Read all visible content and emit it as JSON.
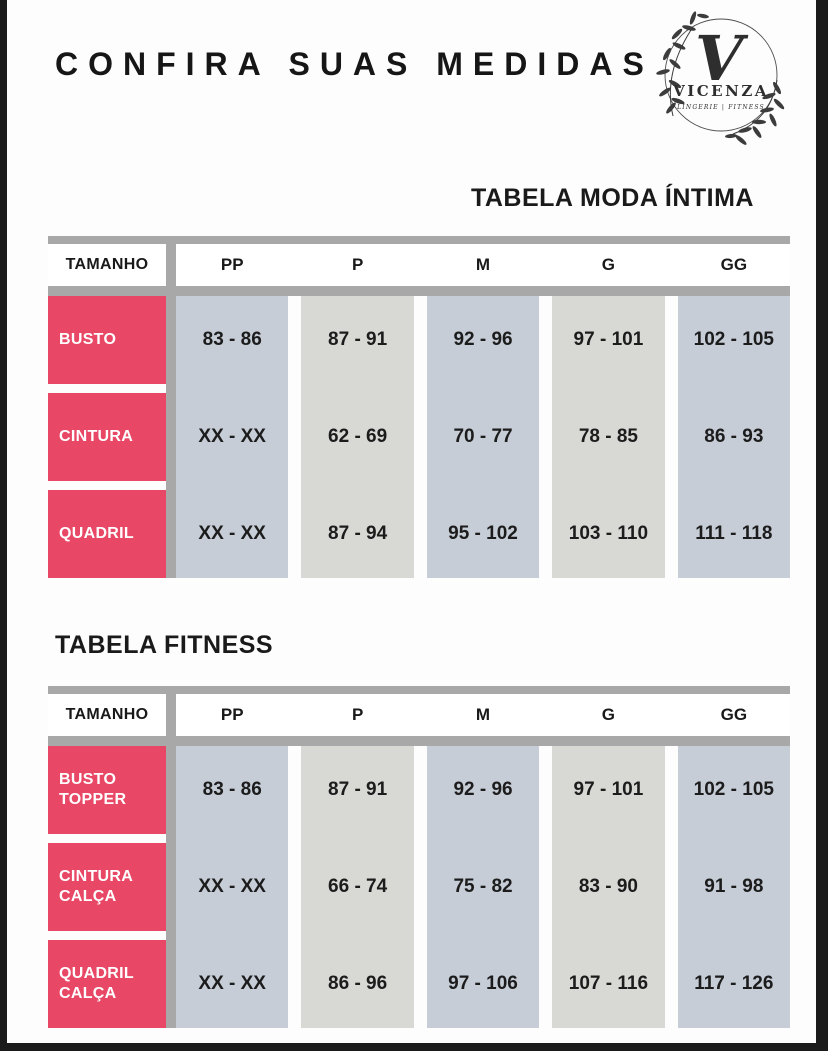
{
  "page": {
    "title": "CONFIRA SUAS MEDIDAS"
  },
  "logo": {
    "initial": "V",
    "brand": "VICENZA",
    "tagline": "LINGERIE | FITNESS"
  },
  "colors": {
    "accent_pink": "#e84865",
    "col_blue_gray": "#c6cdd6",
    "col_light_gray": "#d8d8d5",
    "table_frame_gray": "#a8a8a8"
  },
  "tables": [
    {
      "title": "TABELA MODA ÍNTIMA",
      "size_header_label": "TAMANHO",
      "sizes": [
        "PP",
        "P",
        "M",
        "G",
        "GG"
      ],
      "rows": [
        {
          "label": "BUSTO",
          "values": [
            "83 - 86",
            "87 - 91",
            "92 - 96",
            "97 - 101",
            "102 - 105"
          ]
        },
        {
          "label": "CINTURA",
          "values": [
            "XX - XX",
            "62 - 69",
            "70 - 77",
            "78 - 85",
            "86 - 93"
          ]
        },
        {
          "label": "QUADRIL",
          "values": [
            "XX - XX",
            "87 - 94",
            "95 - 102",
            "103 - 110",
            "111 - 118"
          ]
        }
      ]
    },
    {
      "title": "TABELA FITNESS",
      "size_header_label": "TAMANHO",
      "sizes": [
        "PP",
        "P",
        "M",
        "G",
        "GG"
      ],
      "rows": [
        {
          "label": "BUSTO TOPPER",
          "values": [
            "83 - 86",
            "87 - 91",
            "92 - 96",
            "97 - 101",
            "102 - 105"
          ]
        },
        {
          "label": "CINTURA CALÇA",
          "values": [
            "XX - XX",
            "66 - 74",
            "75 - 82",
            "83 - 90",
            "91 - 98"
          ]
        },
        {
          "label": "QUADRIL CALÇA",
          "values": [
            "XX - XX",
            "86 - 96",
            "97 - 106",
            "107 - 116",
            "117 - 126"
          ]
        }
      ]
    }
  ]
}
